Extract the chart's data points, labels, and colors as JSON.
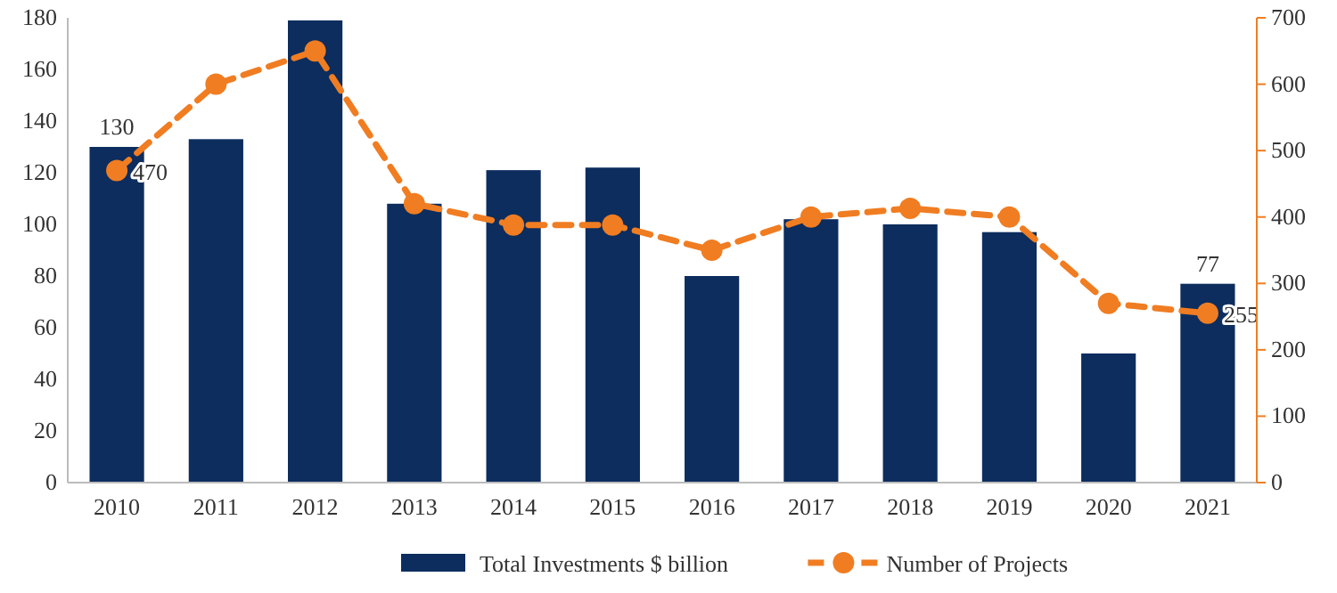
{
  "chart_data": {
    "type": "bar",
    "categories": [
      "2010",
      "2011",
      "2012",
      "2013",
      "2014",
      "2015",
      "2016",
      "2017",
      "2018",
      "2019",
      "2020",
      "2021"
    ],
    "series": [
      {
        "name": "Total Investments $ billion",
        "color": "#0c2d5e",
        "values": [
          130,
          133,
          179,
          108,
          121,
          122,
          80,
          102,
          100,
          97,
          50,
          77
        ],
        "value_labels": [
          "130",
          null,
          null,
          null,
          null,
          null,
          null,
          null,
          null,
          null,
          null,
          "77"
        ]
      },
      {
        "name": "Number of Projects",
        "type": "line",
        "axis": "y2",
        "color": "#f07d22",
        "marker": "circle",
        "line_style": "dashed",
        "values": [
          470,
          600,
          650,
          420,
          388,
          388,
          350,
          400,
          413,
          400,
          270,
          255
        ],
        "value_labels": [
          "470",
          null,
          null,
          null,
          null,
          null,
          null,
          null,
          null,
          null,
          null,
          "255"
        ]
      }
    ],
    "ylim": [
      0,
      180
    ],
    "yticks": [
      0,
      20,
      40,
      60,
      80,
      100,
      120,
      140,
      160,
      180
    ],
    "y2lim": [
      0,
      700
    ],
    "y2ticks": [
      0,
      100,
      200,
      300,
      400,
      500,
      600,
      700
    ],
    "legend": "bottom",
    "grid": false
  }
}
